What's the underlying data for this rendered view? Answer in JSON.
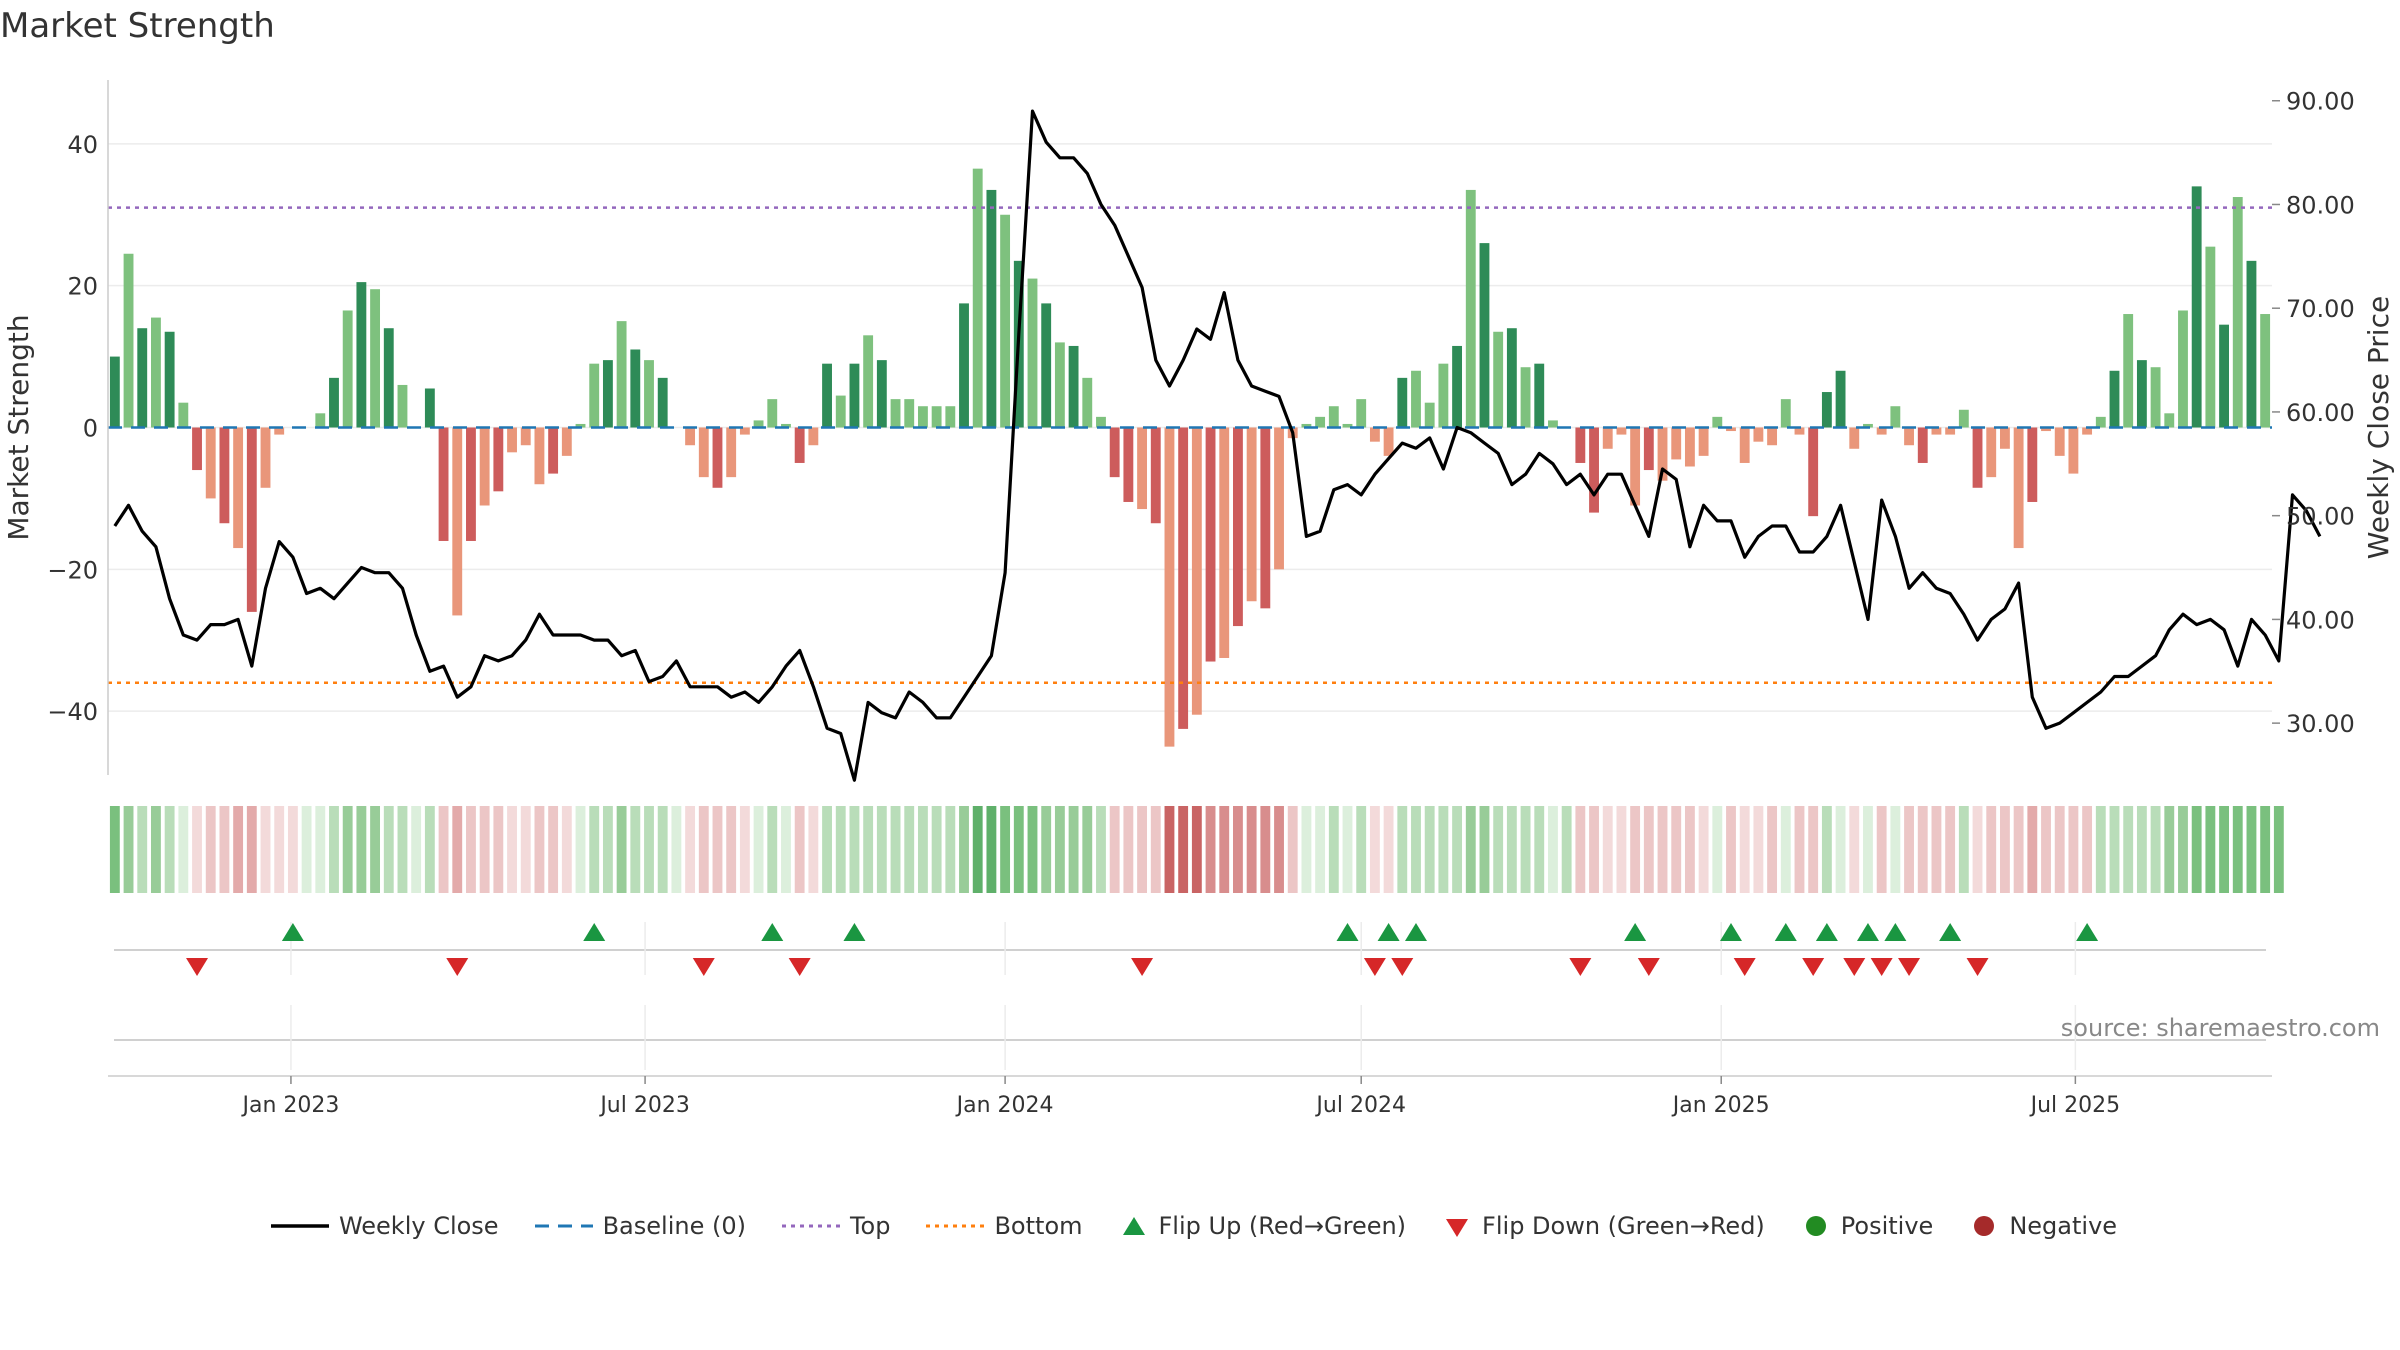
{
  "title": "Market Strength",
  "source": "source: sharemaestro.com",
  "colors": {
    "pos_strong": "#2e8b57",
    "pos_weak": "#7ec17e",
    "neg_strong": "#cd5c5c",
    "neg_weak": "#e9967a",
    "close_line": "#000000",
    "baseline": "#1f77b4",
    "top": "#9467bd",
    "bottom": "#ff7f0e",
    "flip_up": "#1a9641",
    "flip_down": "#d62728"
  },
  "legend": [
    {
      "label": "Weekly Close",
      "symbol": "line",
      "color": "#000000"
    },
    {
      "label": "Baseline (0)",
      "symbol": "dash",
      "color": "#1f77b4"
    },
    {
      "label": "Top",
      "symbol": "dot",
      "color": "#9467bd"
    },
    {
      "label": "Bottom",
      "symbol": "dot",
      "color": "#ff7f0e"
    },
    {
      "label": "Flip Up (Red→Green)",
      "symbol": "triangle-up",
      "color": "#1a9641"
    },
    {
      "label": "Flip Down (Green→Red)",
      "symbol": "triangle-down",
      "color": "#d62728"
    },
    {
      "label": "Positive",
      "symbol": "circle",
      "color": "#228b22"
    },
    {
      "label": "Negative",
      "symbol": "circle",
      "color": "#a52a2a"
    }
  ],
  "chart_data": {
    "type": "bar",
    "x_start_date": "2022-10-03",
    "x_interval": "weekly",
    "xlabel": "",
    "ylabel": "Market Strength",
    "y2label": "Weekly Close Price",
    "ylim": [
      -49,
      49
    ],
    "y2lim": [
      25.0,
      92.0
    ],
    "yticks": [
      "40",
      "20",
      "0",
      "−20",
      "−40"
    ],
    "y2ticks": [
      "90.00",
      "80.00",
      "70.00",
      "60.00",
      "50.00",
      "40.00",
      "30.00"
    ],
    "xticks": [
      "Jan 2023",
      "Jul 2023",
      "Jan 2024",
      "Jul 2024",
      "Jan 2025",
      "Jul 2025"
    ],
    "top_line": 31,
    "bottom_line": -36,
    "strength": [
      10,
      24.5,
      14,
      15.5,
      13.5,
      3.5,
      -6,
      -10,
      -13.5,
      -17,
      -26,
      -8.5,
      -1,
      0,
      0,
      2,
      7,
      16.5,
      20.5,
      19.5,
      14,
      6,
      0,
      5.5,
      -16,
      -26.5,
      -16,
      -11,
      -9,
      -3.5,
      -2.5,
      -8,
      -6.5,
      -4,
      0.5,
      9,
      9.5,
      15,
      11,
      9.5,
      7,
      0,
      -2.5,
      -7,
      -8.5,
      -7,
      -1,
      1,
      4,
      0.5,
      -5,
      -2.5,
      9,
      4.5,
      9,
      13,
      9.5,
      4,
      4,
      3,
      3,
      3,
      17.5,
      36.5,
      33.5,
      30,
      23.5,
      21,
      17.5,
      12,
      11.5,
      7,
      1.5,
      -7,
      -10.5,
      -11.5,
      -13.5,
      -45,
      -42.5,
      -40.5,
      -33,
      -32.5,
      -28,
      -24.5,
      -25.5,
      -20,
      -1.5,
      0.5,
      1.5,
      3,
      0.5,
      4,
      -2,
      -4,
      7,
      8,
      3.5,
      9,
      11.5,
      33.5,
      26,
      13.5,
      14,
      8.5,
      9,
      1,
      0,
      -5,
      -12,
      -3,
      -1,
      -11,
      -6,
      -7.5,
      -4.5,
      -5.5,
      -4,
      1.5,
      -0.5,
      -5,
      -2,
      -2.5,
      4,
      -1,
      -12.5,
      5,
      8,
      -3,
      0.5,
      -1,
      3,
      -2.5,
      -5,
      -1,
      -1,
      2.5,
      -8.5,
      -7,
      -3,
      -17,
      -10.5,
      -0.5,
      -4,
      -6.5,
      -1,
      1.5,
      8,
      16,
      9.5,
      8.5,
      2,
      16.5,
      34,
      25.5,
      14.5,
      32.5,
      23.5,
      16
    ],
    "weekly_close": [
      49,
      51,
      48.5,
      47,
      42,
      38.5,
      38,
      39.5,
      39.5,
      40,
      35.5,
      43,
      47.5,
      46,
      42.5,
      43,
      42,
      43.5,
      45,
      44.5,
      44.5,
      43,
      38.5,
      35,
      35.5,
      32.5,
      33.5,
      36.5,
      36,
      36.5,
      38,
      40.5,
      38.5,
      38.5,
      38.5,
      38,
      38,
      36.5,
      37,
      34,
      34.5,
      36,
      33.5,
      33.5,
      33.5,
      32.5,
      33,
      32,
      33.5,
      35.5,
      37,
      33.5,
      29.5,
      29,
      24.5,
      32,
      31,
      30.5,
      33,
      32,
      30.5,
      30.5,
      32.5,
      34.5,
      36.5,
      44.5,
      67.5,
      89,
      86,
      84.5,
      84.5,
      83,
      80,
      78,
      75,
      72,
      65,
      62.5,
      65,
      68,
      67,
      71.5,
      65,
      62.5,
      62,
      61.5,
      58,
      48,
      48.5,
      52.5,
      53,
      52,
      54,
      55.5,
      57,
      56.5,
      57.5,
      54.5,
      58.5,
      58,
      57,
      56,
      53,
      54,
      56,
      55,
      53,
      54,
      52,
      54,
      54,
      51,
      48,
      54.5,
      53.5,
      47,
      51,
      49.5,
      49.5,
      46,
      48,
      49,
      49,
      46.5,
      46.5,
      48,
      51,
      45.5,
      40,
      51.5,
      48,
      43,
      44.5,
      43,
      42.5,
      40.5,
      38,
      40,
      41,
      43.5,
      32.5,
      29.5,
      30,
      31,
      32,
      33,
      34.5,
      34.5,
      35.5,
      36.5,
      39,
      40.5,
      39.5,
      40,
      39,
      35.5,
      40,
      38.5,
      36,
      52,
      50.5,
      48
    ],
    "heat_levels": [
      3,
      2,
      1,
      2,
      1,
      0,
      0,
      1,
      1,
      2,
      2,
      0,
      0,
      0,
      0,
      0,
      1,
      2,
      2,
      2,
      1,
      1,
      0,
      1,
      1,
      2,
      1,
      1,
      1,
      0,
      0,
      1,
      1,
      0,
      0,
      1,
      1,
      2,
      1,
      1,
      1,
      0,
      0,
      1,
      1,
      1,
      0,
      0,
      1,
      0,
      1,
      0,
      1,
      1,
      1,
      1,
      1,
      1,
      1,
      1,
      1,
      1,
      2,
      4,
      4,
      3,
      3,
      3,
      2,
      2,
      2,
      2,
      1,
      1,
      1,
      1,
      1,
      4,
      4,
      4,
      3,
      3,
      3,
      3,
      3,
      3,
      1,
      0,
      0,
      1,
      0,
      1,
      0,
      0,
      1,
      1,
      1,
      1,
      1,
      2,
      2,
      1,
      1,
      1,
      1,
      0,
      1,
      1,
      1,
      0,
      0,
      1,
      1,
      1,
      1,
      1,
      0,
      0,
      1,
      0,
      0,
      1,
      0,
      1,
      1,
      1,
      0,
      0,
      0,
      1,
      0,
      1,
      1,
      1,
      1,
      1,
      0,
      1,
      1,
      1,
      2,
      1,
      1,
      1,
      1,
      1,
      1,
      1,
      1,
      1,
      2,
      2,
      3,
      3,
      3,
      3,
      3,
      3,
      3
    ],
    "flip_up_weeks": [
      13,
      35,
      48,
      54,
      90,
      93,
      95,
      111,
      118,
      122,
      125,
      128,
      130,
      134,
      144
    ],
    "flip_down_weeks": [
      6,
      25,
      43,
      50,
      75,
      92,
      94,
      107,
      112,
      119,
      124,
      127,
      129,
      131,
      136
    ]
  }
}
